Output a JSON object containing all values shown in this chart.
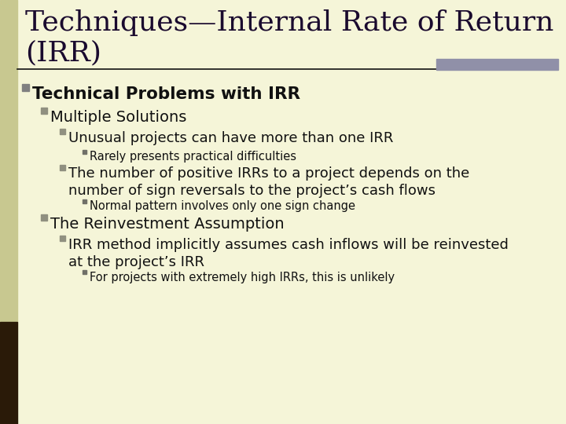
{
  "title_line1": "Techniques—Internal Rate of Return",
  "title_line2": "(IRR)",
  "background_color": "#f5f5d8",
  "title_color": "#1a0a2e",
  "text_color": "#111111",
  "accent_bar_color": "#9090a8",
  "left_bar_color_top": "#c8c89a",
  "left_bar_color_bottom": "#2a1a0a",
  "separator_color": "#111111",
  "title_fontsize": 26,
  "lines": [
    {
      "level": 0,
      "text": "Technical Problems with IRR",
      "bold": true,
      "size": 15.5
    },
    {
      "level": 1,
      "text": "Multiple Solutions",
      "bold": false,
      "size": 14
    },
    {
      "level": 2,
      "text": "Unusual projects can have more than one IRR",
      "bold": false,
      "size": 13
    },
    {
      "level": 3,
      "text": "Rarely presents practical difficulties",
      "bold": false,
      "size": 10.5
    },
    {
      "level": 2,
      "text": "The number of positive IRRs to a project depends on the\nnumber of sign reversals to the project’s cash flows",
      "bold": false,
      "size": 13
    },
    {
      "level": 3,
      "text": "Normal pattern involves only one sign change",
      "bold": false,
      "size": 10.5
    },
    {
      "level": 1,
      "text": "The Reinvestment Assumption",
      "bold": false,
      "size": 14
    },
    {
      "level": 2,
      "text": "IRR method implicitly assumes cash inflows will be reinvested\nat the project’s IRR",
      "bold": false,
      "size": 13
    },
    {
      "level": 3,
      "text": "For projects with extremely high IRRs, this is unlikely",
      "bold": false,
      "size": 10.5
    }
  ],
  "level_indent": [
    28,
    52,
    76,
    105
  ],
  "bullet_colors": [
    "#808080",
    "#909080",
    "#909080",
    "#707068"
  ],
  "bullet_sizes": [
    9,
    8,
    7,
    5
  ]
}
